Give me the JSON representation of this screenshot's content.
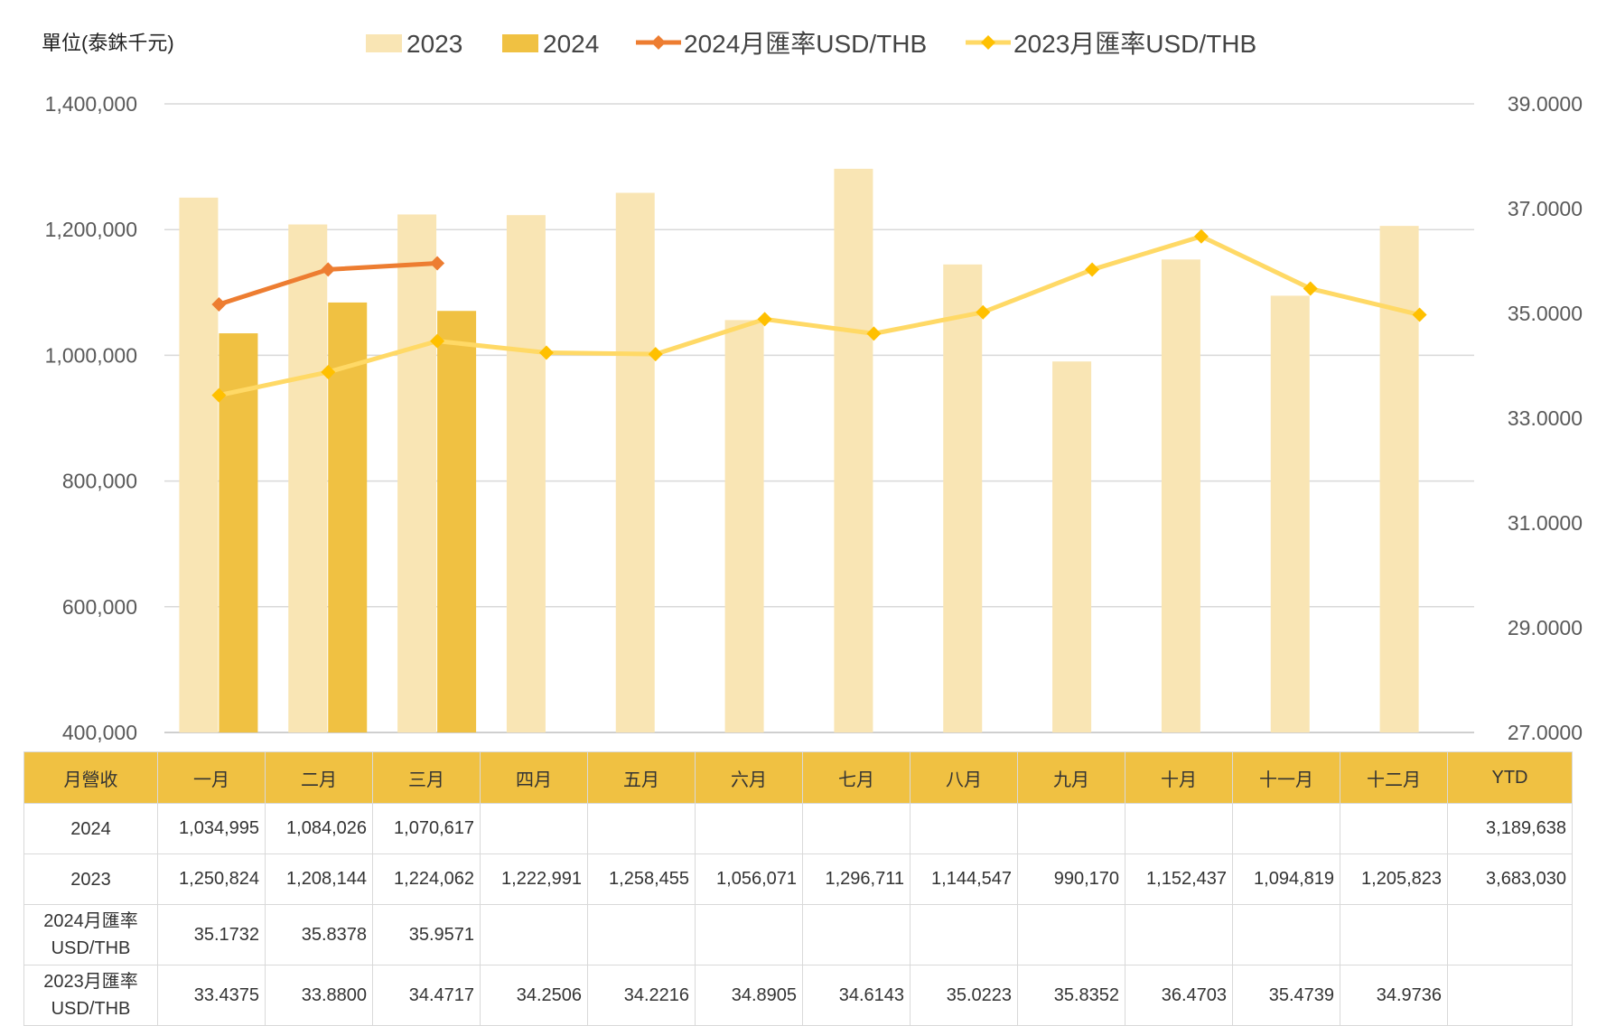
{
  "chart_data": {
    "type": "bar+line",
    "unit_label": "單位(泰銖千元)",
    "categories": [
      "一月",
      "二月",
      "三月",
      "四月",
      "五月",
      "六月",
      "七月",
      "八月",
      "九月",
      "十月",
      "十一月",
      "十二月"
    ],
    "y_left": {
      "min": 400000,
      "max": 1400000,
      "ticks": [
        "400,000",
        "600,000",
        "800,000",
        "1,000,000",
        "1,200,000",
        "1,400,000"
      ]
    },
    "y_right": {
      "min": 27,
      "max": 39,
      "ticks": [
        "27.0000",
        "29.0000",
        "31.0000",
        "33.0000",
        "35.0000",
        "37.0000",
        "39.0000"
      ]
    },
    "grid": true,
    "legend_position": "top",
    "bar_series": [
      {
        "name": "2023",
        "color": "#f9e5b4",
        "values": [
          1250824,
          1208144,
          1224062,
          1222991,
          1258455,
          1056071,
          1296711,
          1144547,
          990170,
          1152437,
          1094819,
          1205823
        ]
      },
      {
        "name": "2024",
        "color": "#f0c142",
        "values": [
          1034995,
          1084026,
          1070617,
          null,
          null,
          null,
          null,
          null,
          null,
          null,
          null,
          null
        ]
      }
    ],
    "line_series": [
      {
        "name": "2024月匯率USD/THB",
        "color": "#ed7d31",
        "marker": "#ed7d31",
        "values": [
          35.1732,
          35.8378,
          35.9571,
          null,
          null,
          null,
          null,
          null,
          null,
          null,
          null,
          null
        ]
      },
      {
        "name": "2023月匯率USD/THB",
        "color": "#ffd966",
        "marker": "#ffc000",
        "values": [
          33.4375,
          33.88,
          34.4717,
          34.2506,
          34.2216,
          34.8905,
          34.6143,
          35.0223,
          35.8352,
          36.4703,
          35.4739,
          34.9736
        ]
      }
    ]
  },
  "table": {
    "header": [
      "月營收",
      "一月",
      "二月",
      "三月",
      "四月",
      "五月",
      "六月",
      "七月",
      "八月",
      "九月",
      "十月",
      "十一月",
      "十二月",
      "YTD"
    ],
    "rows": [
      {
        "label": "2024",
        "cells": [
          "1,034,995",
          "1,084,026",
          "1,070,617",
          "",
          "",
          "",
          "",
          "",
          "",
          "",
          "",
          "",
          "3,189,638"
        ]
      },
      {
        "label": "2023",
        "cells": [
          "1,250,824",
          "1,208,144",
          "1,224,062",
          "1,222,991",
          "1,258,455",
          "1,056,071",
          "1,296,711",
          "1,144,547",
          "990,170",
          "1,152,437",
          "1,094,819",
          "1,205,823",
          "3,683,030"
        ]
      },
      {
        "label": "2024月匯率USD/THB",
        "cells": [
          "35.1732",
          "35.8378",
          "35.9571",
          "",
          "",
          "",
          "",
          "",
          "",
          "",
          "",
          "",
          ""
        ]
      },
      {
        "label": "2023月匯率USD/THB",
        "cells": [
          "33.4375",
          "33.8800",
          "34.4717",
          "34.2506",
          "34.2216",
          "34.8905",
          "34.6143",
          "35.0223",
          "35.8352",
          "36.4703",
          "35.4739",
          "34.9736",
          ""
        ]
      }
    ]
  }
}
